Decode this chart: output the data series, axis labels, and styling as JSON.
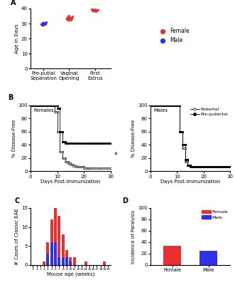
{
  "panel_A": {
    "ylabel": "Age in Days",
    "xtick_labels": [
      "Pre-putial\nSeparation",
      "Vaginal\nOpening",
      "First\nEstrus"
    ],
    "blue_y_mean": 30.0,
    "blue_y_std": 0.6,
    "blue_n": 20,
    "red_vaginal_mean": 33.5,
    "red_vaginal_std": 0.7,
    "red_vaginal_n": 20,
    "red_estrus_mean": 38.8,
    "red_estrus_std": 0.4,
    "red_estrus_n": 18,
    "ylim": [
      0,
      40
    ],
    "yticks": [
      0,
      10,
      20,
      30,
      40
    ],
    "legend_female": "Female",
    "legend_male": "Male",
    "female_color": "#e83030",
    "male_color": "#3030e8"
  },
  "panel_B_left": {
    "label": "Females",
    "ylabel": "% Disease-Free",
    "xlabel": "Days Post-Immunization",
    "pubertal_x": [
      0,
      9,
      9,
      10,
      10,
      11,
      11,
      12,
      12,
      13,
      13,
      14,
      14,
      15,
      15,
      16,
      16,
      17,
      17,
      18,
      18,
      19,
      19,
      20,
      20,
      21,
      21,
      22,
      22,
      30
    ],
    "pubertal_y": [
      100,
      100,
      90,
      90,
      60,
      60,
      30,
      30,
      20,
      20,
      15,
      15,
      12,
      12,
      10,
      10,
      8,
      8,
      7,
      7,
      7,
      7,
      7,
      7,
      5,
      5,
      5,
      5,
      5,
      5
    ],
    "prepubertal_x": [
      0,
      10,
      10,
      11,
      11,
      12,
      12,
      13,
      13,
      14,
      14,
      30
    ],
    "prepubertal_y": [
      100,
      100,
      95,
      95,
      60,
      60,
      45,
      45,
      43,
      43,
      43,
      43
    ],
    "xlim": [
      0,
      30
    ],
    "ylim": [
      0,
      100
    ],
    "yticks": [
      0,
      20,
      40,
      60,
      80,
      100
    ],
    "xticks": [
      0,
      10,
      20,
      30
    ]
  },
  "panel_B_right": {
    "label": "Males",
    "ylabel": "% Disease-Free",
    "xlabel": "Days Post-Immunization",
    "pubertal_x": [
      0,
      11,
      11,
      12,
      12,
      13,
      13,
      14,
      14,
      15,
      15,
      16,
      16,
      17,
      17,
      18,
      18,
      19,
      19,
      30
    ],
    "pubertal_y": [
      100,
      100,
      60,
      60,
      35,
      35,
      15,
      15,
      9,
      9,
      7,
      7,
      7,
      7,
      7,
      7,
      7,
      7,
      7,
      7
    ],
    "prepubertal_x": [
      0,
      11,
      11,
      12,
      12,
      13,
      13,
      14,
      14,
      15,
      15,
      16,
      16,
      17,
      17,
      30
    ],
    "prepubertal_y": [
      100,
      100,
      60,
      60,
      40,
      40,
      18,
      18,
      9,
      9,
      7,
      7,
      7,
      7,
      7,
      7
    ],
    "xlim": [
      0,
      30
    ],
    "ylim": [
      0,
      100
    ],
    "yticks": [
      0,
      20,
      40,
      60,
      80,
      100
    ],
    "xticks": [
      0,
      10,
      20,
      30
    ],
    "legend_pubertal": "Pubertal",
    "legend_prepubertal": "Pre-pubertal"
  },
  "panel_C": {
    "xlabel": "Mouse age (weeks)",
    "ylabel": "# Cases of Classic EAE",
    "ages": [
      0,
      1,
      2,
      3,
      4,
      5,
      6,
      7,
      8,
      9,
      10,
      11,
      12,
      13,
      14,
      15,
      16,
      17,
      18,
      19,
      20
    ],
    "red_values": [
      0,
      0,
      0,
      1,
      3,
      6,
      13,
      11,
      6,
      2,
      1,
      2,
      0,
      0,
      1,
      0,
      0,
      0,
      0,
      1,
      0
    ],
    "blue_values": [
      0,
      0,
      0,
      0,
      3,
      6,
      6,
      2,
      2,
      2,
      1,
      0,
      0,
      0,
      0,
      0,
      0,
      0,
      0,
      0,
      0
    ],
    "ylim": [
      0,
      15
    ],
    "yticks": [
      0,
      5,
      10,
      15
    ],
    "female_color": "#e83030",
    "male_color": "#3030e8"
  },
  "panel_D": {
    "ylabel": "Incidence of Paralysis",
    "categories": [
      "Female",
      "Male"
    ],
    "values": [
      34,
      25
    ],
    "ylim": [
      0,
      100
    ],
    "yticks": [
      0,
      20,
      40,
      60,
      80,
      100
    ],
    "female_color": "#e83030",
    "male_color": "#3030e8",
    "legend_female": "Female",
    "legend_male": "Male"
  }
}
